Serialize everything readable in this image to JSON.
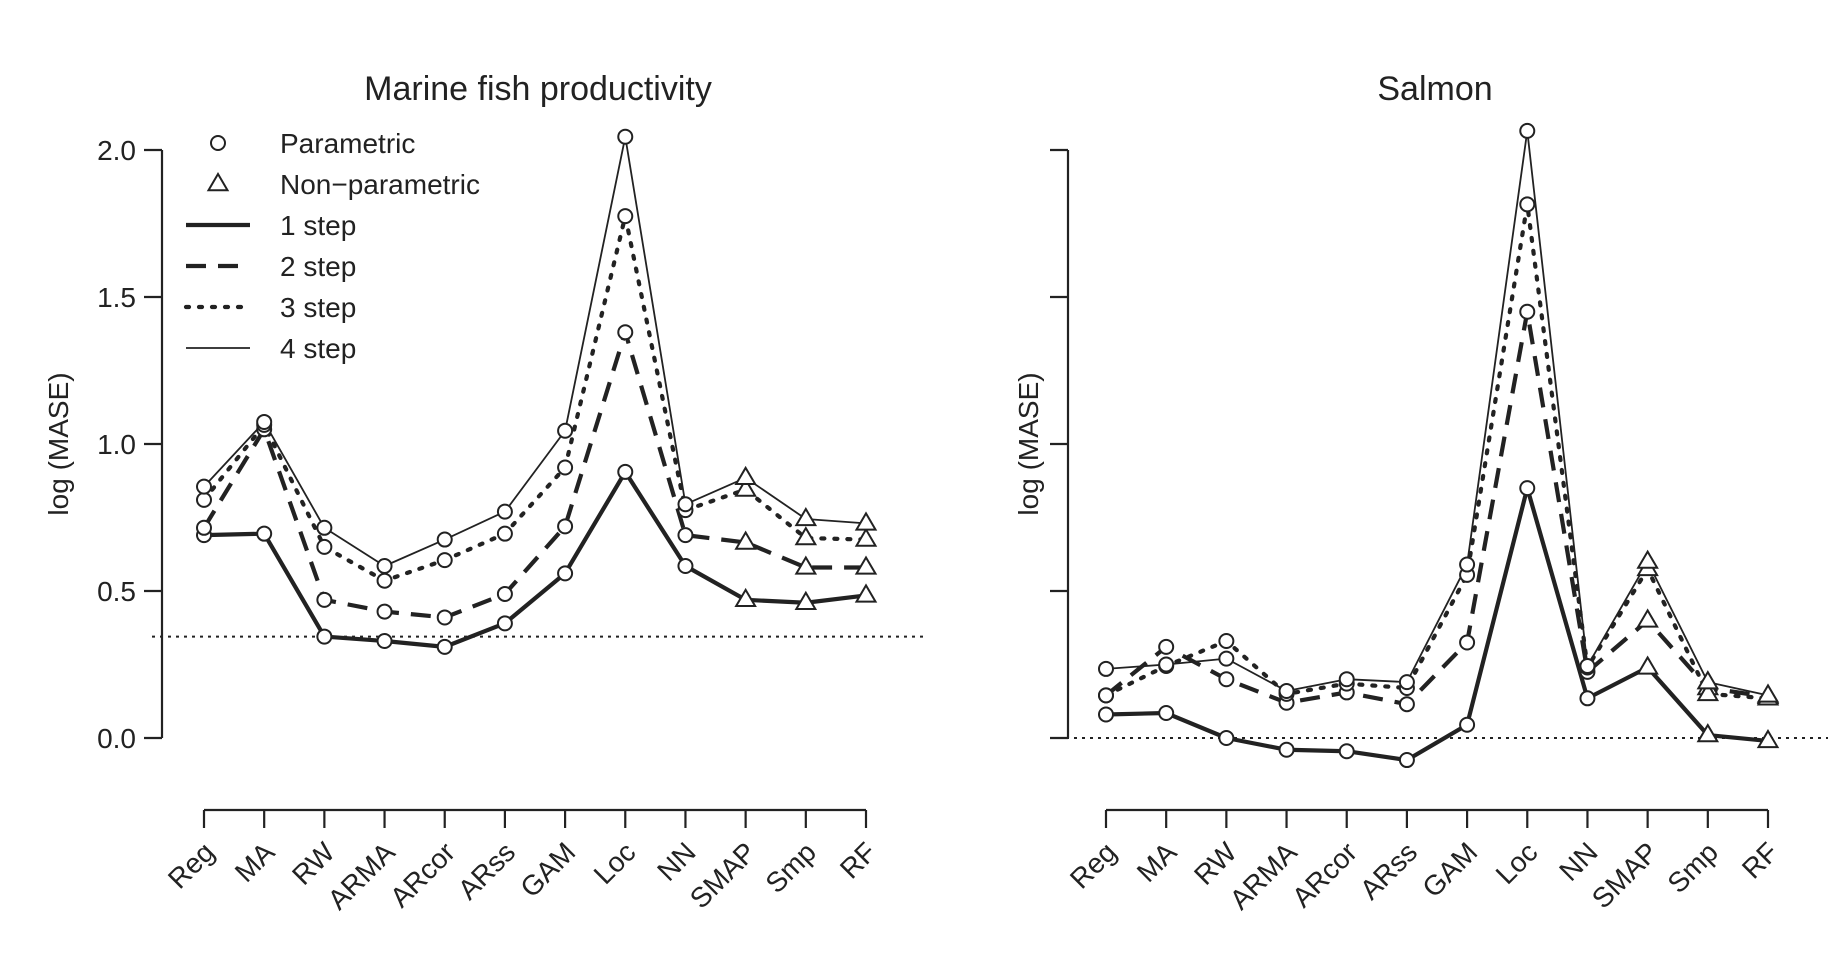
{
  "chart_data": [
    {
      "type": "line",
      "title": "Marine fish productivity",
      "ylabel": "log (MASE)",
      "xlabel": "",
      "categories": [
        "Reg",
        "MA",
        "RW",
        "ARMA",
        "ARcor",
        "ARss",
        "GAM",
        "Loc",
        "NN",
        "SMAP",
        "Smp",
        "RF"
      ],
      "ylim": [
        -0.25,
        2.05
      ],
      "yticks": [
        0.0,
        0.5,
        1.0,
        1.5,
        2.0
      ],
      "ytick_labels": [
        "0.0",
        "0.5",
        "1.0",
        "1.5",
        "2.0"
      ],
      "reference_line": 0.345,
      "markers": [
        "circle",
        "circle",
        "circle",
        "circle",
        "circle",
        "circle",
        "circle",
        "circle",
        "circle",
        "triangle",
        "triangle",
        "triangle"
      ],
      "series": [
        {
          "name": "1 step",
          "style": "solid-thick",
          "values": [
            0.69,
            0.695,
            0.345,
            0.33,
            0.31,
            0.39,
            0.56,
            0.905,
            0.585,
            0.47,
            0.46,
            0.485
          ]
        },
        {
          "name": "2 step",
          "style": "dashed",
          "values": [
            0.715,
            1.05,
            0.47,
            0.43,
            0.41,
            0.49,
            0.72,
            1.38,
            0.69,
            0.665,
            0.58,
            0.58
          ]
        },
        {
          "name": "3 step",
          "style": "dotted",
          "values": [
            0.81,
            1.065,
            0.65,
            0.535,
            0.605,
            0.695,
            0.92,
            1.775,
            0.775,
            0.845,
            0.68,
            0.675
          ]
        },
        {
          "name": "4 step",
          "style": "solid-thin",
          "values": [
            0.855,
            1.075,
            0.715,
            0.585,
            0.675,
            0.77,
            1.045,
            2.045,
            0.795,
            0.885,
            0.745,
            0.73
          ]
        }
      ]
    },
    {
      "type": "line",
      "title": "Salmon",
      "ylabel": "log (MASE)",
      "xlabel": "",
      "categories": [
        "Reg",
        "MA",
        "RW",
        "ARMA",
        "ARcor",
        "ARss",
        "GAM",
        "Loc",
        "NN",
        "SMAP",
        "Smp",
        "RF"
      ],
      "ylim": [
        -0.25,
        2.05
      ],
      "yticks": [
        0.0,
        0.5,
        1.0,
        1.5,
        2.0
      ],
      "ytick_labels": [],
      "reference_line": 0.0,
      "markers": [
        "circle",
        "circle",
        "circle",
        "circle",
        "circle",
        "circle",
        "circle",
        "circle",
        "circle",
        "triangle",
        "triangle",
        "triangle"
      ],
      "series": [
        {
          "name": "1 step",
          "style": "solid-thick",
          "values": [
            0.08,
            0.085,
            0.0,
            -0.04,
            -0.045,
            -0.075,
            0.045,
            0.85,
            0.135,
            0.24,
            0.01,
            -0.01
          ]
        },
        {
          "name": "2 step",
          "style": "dashed",
          "values": [
            0.145,
            0.31,
            0.2,
            0.12,
            0.155,
            0.115,
            0.325,
            1.45,
            0.225,
            0.4,
            0.17,
            0.14
          ]
        },
        {
          "name": "3 step",
          "style": "dotted",
          "values": [
            0.145,
            0.245,
            0.33,
            0.15,
            0.185,
            0.17,
            0.555,
            1.815,
            0.24,
            0.575,
            0.15,
            0.135
          ]
        },
        {
          "name": "4 step",
          "style": "solid-thin",
          "values": [
            0.235,
            0.25,
            0.27,
            0.16,
            0.2,
            0.19,
            0.59,
            2.065,
            0.245,
            0.6,
            0.19,
            0.145
          ]
        }
      ]
    }
  ],
  "legend": {
    "placement": "top-left",
    "marker_entries": [
      {
        "marker": "circle",
        "label": "Parametric"
      },
      {
        "marker": "triangle",
        "label": "Non−parametric"
      }
    ],
    "line_entries": [
      {
        "style": "solid-thick",
        "label": "1 step"
      },
      {
        "style": "dashed",
        "label": "2 step"
      },
      {
        "style": "dotted",
        "label": "3 step"
      },
      {
        "style": "solid-thin",
        "label": "4 step"
      }
    ]
  }
}
